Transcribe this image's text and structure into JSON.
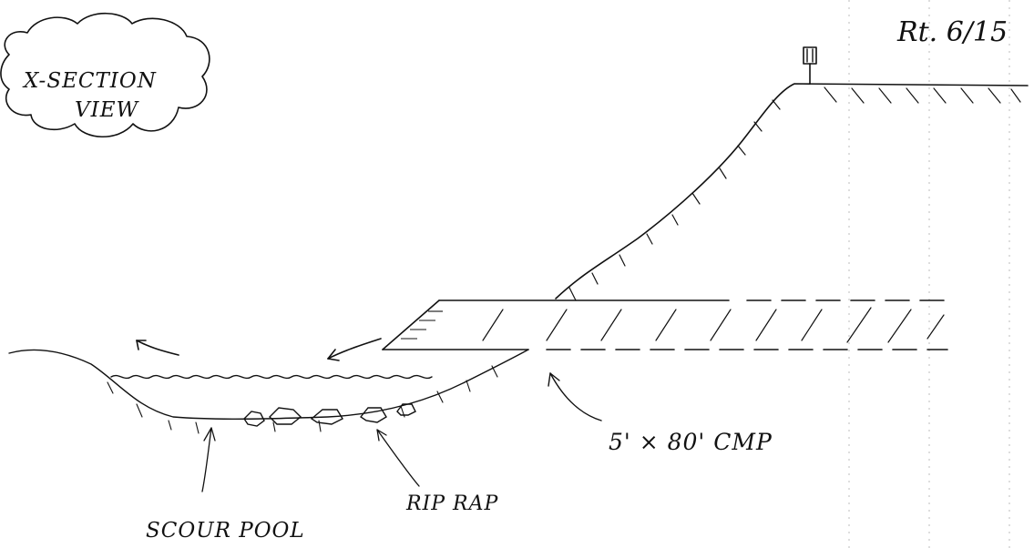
{
  "labels": {
    "cloud_title_line1": "X-SECTION",
    "cloud_title_line2": "VIEW",
    "route": "Rt. 6/15",
    "pipe": "5' × 80' CMP",
    "riprap": "RIP RAP",
    "scour_pool": "SCOUR POOL"
  }
}
